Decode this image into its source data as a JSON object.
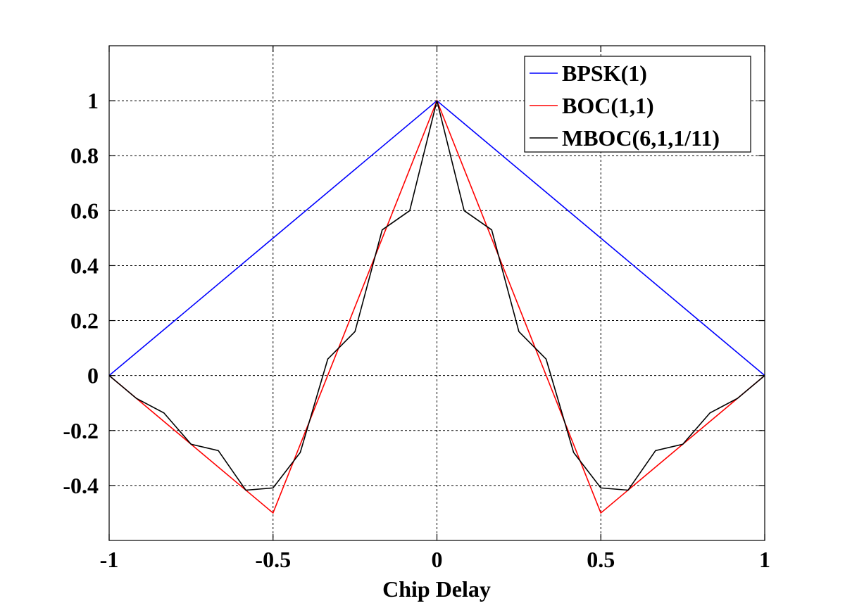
{
  "chart_data": {
    "type": "line",
    "title": "",
    "xlabel": "Chip Delay",
    "ylabel": "",
    "xlim": [
      -1,
      1
    ],
    "ylim": [
      -0.6,
      1.2
    ],
    "x_ticks": [
      -1,
      -0.5,
      0,
      0.5,
      1
    ],
    "x_tick_labels": [
      "-1",
      "-0.5",
      "0",
      "0.5",
      "1"
    ],
    "y_ticks": [
      -0.4,
      -0.2,
      0,
      0.2,
      0.4,
      0.6,
      0.8,
      1
    ],
    "y_tick_labels": [
      "-0.4",
      "-0.2",
      "0",
      "0.2",
      "0.4",
      "0.6",
      "0.8",
      "1"
    ],
    "grid": true,
    "legend_position": "top-right",
    "series": [
      {
        "name": "BPSK(1)",
        "color": "#0000ff",
        "x": [
          -1,
          0,
          1
        ],
        "y": [
          0,
          1,
          0
        ]
      },
      {
        "name": "BOC(1,1)",
        "color": "#ff0000",
        "x": [
          -1,
          -0.5,
          0,
          0.5,
          1
        ],
        "y": [
          0,
          -0.5,
          1,
          -0.5,
          0
        ]
      },
      {
        "name": "MBOC(6,1,1/11)",
        "color": "#000000",
        "x": [
          -1,
          -0.917,
          -0.833,
          -0.75,
          -0.667,
          -0.583,
          -0.5,
          -0.417,
          -0.333,
          -0.25,
          -0.167,
          -0.083,
          0,
          0.083,
          0.167,
          0.25,
          0.333,
          0.417,
          0.5,
          0.583,
          0.667,
          0.75,
          0.833,
          0.917,
          1
        ],
        "y": [
          0,
          -0.083,
          -0.136,
          -0.25,
          -0.273,
          -0.417,
          -0.409,
          -0.28,
          0.06,
          0.16,
          0.53,
          0.6,
          1,
          0.6,
          0.53,
          0.16,
          0.06,
          -0.28,
          -0.409,
          -0.417,
          -0.273,
          -0.25,
          -0.136,
          -0.083,
          0
        ]
      }
    ]
  }
}
